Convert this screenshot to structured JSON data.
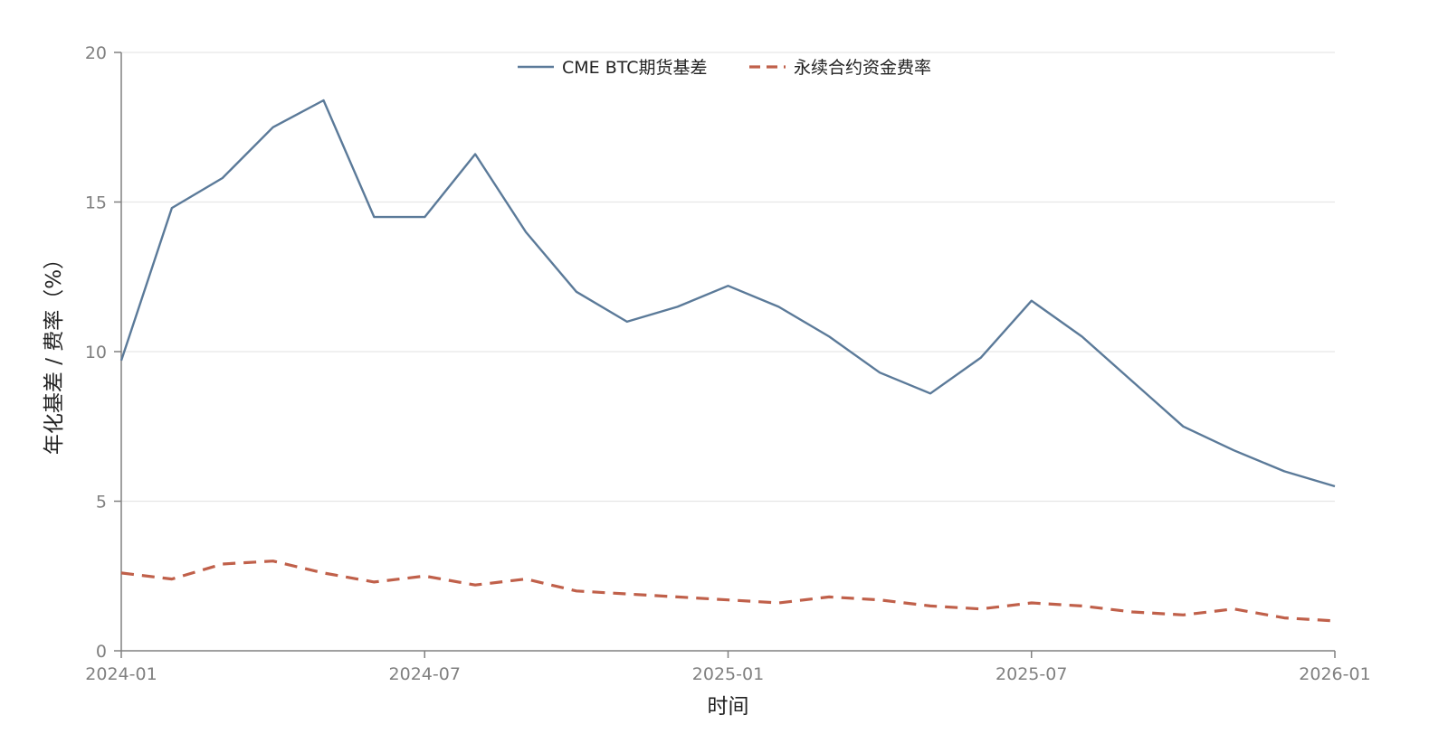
{
  "chart_data": {
    "type": "line",
    "title": "",
    "xlabel": "时间",
    "ylabel": "年化基差 / 费率（%）",
    "x": [
      "2024-01",
      "2024-02",
      "2024-03",
      "2024-04",
      "2024-05",
      "2024-06",
      "2024-07",
      "2024-08",
      "2024-09",
      "2024-10",
      "2024-11",
      "2024-12",
      "2025-01",
      "2025-02",
      "2025-03",
      "2025-04",
      "2025-05",
      "2025-06",
      "2025-07",
      "2025-08",
      "2025-09",
      "2025-10",
      "2025-11",
      "2025-12",
      "2026-01"
    ],
    "x_ticks": [
      "2024-01",
      "2024-07",
      "2025-01",
      "2025-07",
      "2026-01"
    ],
    "y_ticks": [
      0,
      5,
      10,
      15,
      20
    ],
    "ylim": [
      0,
      20
    ],
    "grid": "horizontal",
    "legend_position": "top-center",
    "series": [
      {
        "name": "CME BTC期货基差",
        "color": "#5b7a99",
        "style": "solid",
        "values": [
          9.7,
          14.8,
          15.8,
          17.5,
          18.4,
          14.5,
          14.5,
          16.6,
          14.0,
          12.0,
          11.0,
          11.5,
          12.2,
          11.5,
          10.5,
          9.3,
          8.6,
          9.8,
          11.7,
          10.5,
          9.0,
          7.5,
          6.7,
          6.0,
          5.5
        ]
      },
      {
        "name": "永续合约资金费率",
        "color": "#c0604a",
        "style": "dashed",
        "values": [
          2.6,
          2.4,
          2.9,
          3.0,
          2.6,
          2.3,
          2.5,
          2.2,
          2.4,
          2.0,
          1.9,
          1.8,
          1.7,
          1.6,
          1.8,
          1.7,
          1.5,
          1.4,
          1.6,
          1.5,
          1.3,
          1.2,
          1.4,
          1.1,
          1.0
        ]
      }
    ]
  }
}
